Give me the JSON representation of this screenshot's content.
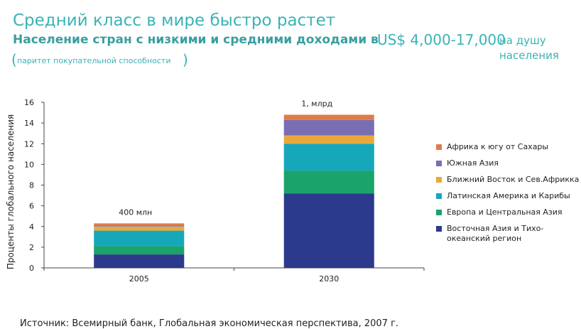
{
  "header": {
    "title": "Средний класс в мире быстро растет",
    "subtitle": "Население стран с низкими и средними доходами в",
    "subtitle_amount": "US$ 4,000-17,000",
    "subtitle_per_capita": "на душу населения",
    "paren_open": "(",
    "paren_note": "паритет покупательной способности",
    "paren_close": ")"
  },
  "chart_data": {
    "type": "bar",
    "stacked": true,
    "categories": [
      "2005",
      "2030"
    ],
    "ylabel": "Проценты глобального населения",
    "xlabel": "",
    "ylim": [
      0,
      16
    ],
    "yticks": [
      0,
      2,
      4,
      6,
      8,
      10,
      12,
      14,
      16
    ],
    "annotations": [
      "400 млн",
      "1, млрд"
    ],
    "series": [
      {
        "name": "Восточная Азия и Тихо-океанский регион",
        "color": "#2b3a8c",
        "values": [
          1.3,
          7.2
        ]
      },
      {
        "name": "Европа и Центральная Азия",
        "color": "#1aa36a",
        "values": [
          0.8,
          2.2
        ]
      },
      {
        "name": "Латинская Америка и Карибы",
        "color": "#17a7ba",
        "values": [
          1.5,
          2.6
        ]
      },
      {
        "name": "Ближний Восток и Сев.Африкка",
        "color": "#e9a93a",
        "values": [
          0.4,
          0.8
        ]
      },
      {
        "name": "Южная Азия",
        "color": "#7a6eb3",
        "values": [
          0.1,
          1.5
        ]
      },
      {
        "name": "Африка к югу от Сахары",
        "color": "#e07b46",
        "values": [
          0.2,
          0.5
        ]
      }
    ],
    "legend": {
      "order": [
        "Африка к югу от Сахары",
        "Южная Азия",
        "Ближний Восток и Сев.Африкка",
        "Латинская Америка и Карибы",
        "Европа и Центральная Азия",
        "Восточная Азия и Тихо-океанский регион"
      ],
      "position": "right"
    }
  },
  "footer": {
    "source": "Источник: Всемирный банк, Глобальная экономическая перспектива, 2007 г."
  }
}
